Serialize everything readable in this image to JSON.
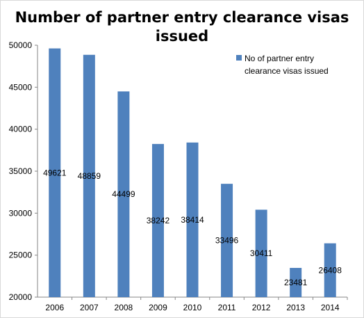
{
  "chart_data": {
    "type": "bar",
    "title_lines": [
      "Number of partner entry clearance visas",
      "issued"
    ],
    "categories": [
      "2006",
      "2007",
      "2008",
      "2009",
      "2010",
      "2011",
      "2012",
      "2013",
      "2014"
    ],
    "series": [
      {
        "name_lines": [
          "No of partner entry",
          "clearance visas issued"
        ],
        "values": [
          49621,
          48859,
          44499,
          38242,
          38414,
          33496,
          30411,
          23481,
          26408
        ],
        "data_labels": [
          "49621",
          "48859",
          "44499",
          "38242",
          "38414",
          "33496",
          "30411",
          "23481",
          "26408"
        ],
        "color": "#4f81bd"
      }
    ],
    "y_ticks": [
      20000,
      25000,
      30000,
      35000,
      40000,
      45000,
      50000
    ],
    "ylim": [
      20000,
      50000
    ],
    "grid": false,
    "legend_position": "top-right"
  }
}
